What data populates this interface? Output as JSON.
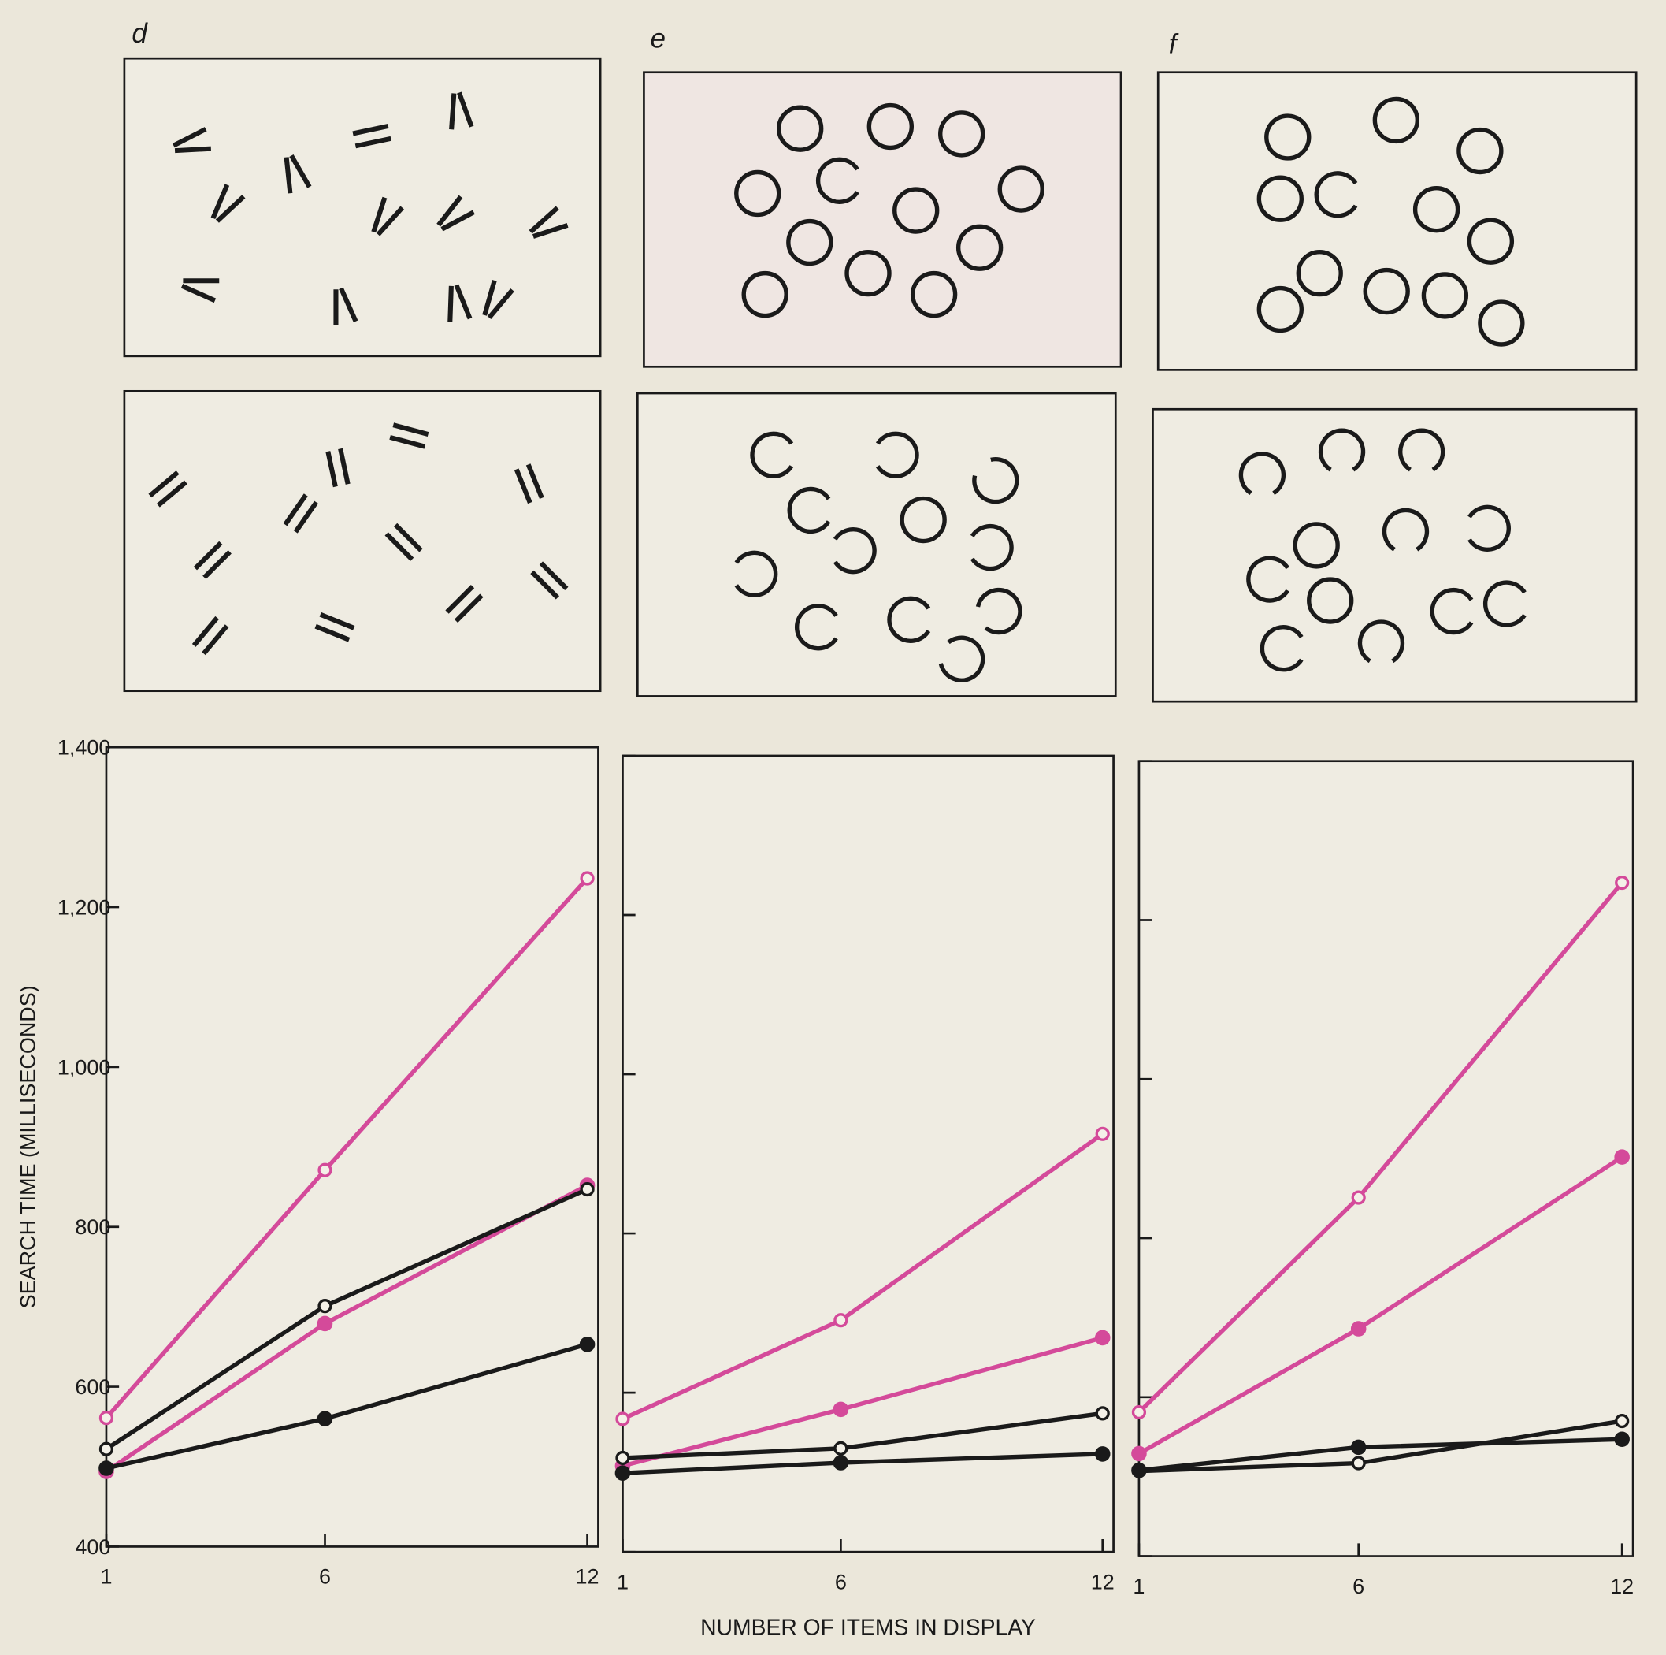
{
  "chart_data": [
    {
      "type": "line",
      "title": "d",
      "y_label": "SEARCH TIME (MILLISECONDS)",
      "x": [
        1,
        6,
        12
      ],
      "xlim": [
        1,
        12.25
      ],
      "xticks": [
        1,
        6,
        12
      ],
      "ylim": [
        400,
        1400
      ],
      "yticks": [
        400,
        600,
        800,
        {
          "value": 1000,
          "label": "1,000"
        },
        {
          "value": 1200,
          "label": "1,200"
        },
        {
          "value": 1400,
          "label": "1,400"
        }
      ],
      "series": [
        {
          "color": "#d44a9a",
          "marker": "open",
          "values": [
            561,
            871,
            1236
          ]
        },
        {
          "color": "#d44a9a",
          "marker": "filled",
          "values": [
            494,
            679,
            852
          ]
        },
        {
          "color": "#1a1a1a",
          "marker": "open",
          "values": [
            522,
            701,
            847
          ]
        },
        {
          "color": "#1a1a1a",
          "marker": "filled",
          "values": [
            498,
            560,
            653
          ]
        }
      ]
    },
    {
      "type": "line",
      "title": "e",
      "x_label": "NUMBER OF ITEMS IN DISPLAY",
      "x": [
        1,
        6,
        12
      ],
      "xlim": [
        1,
        12.25
      ],
      "xticks": [
        1,
        6,
        12
      ],
      "ylim": [
        400,
        1400
      ],
      "series": [
        {
          "color": "#d44a9a",
          "marker": "open",
          "values": [
            567,
            691,
            925
          ]
        },
        {
          "color": "#d44a9a",
          "marker": "filled",
          "values": [
            508,
            579,
            669
          ]
        },
        {
          "color": "#1a1a1a",
          "marker": "open",
          "values": [
            518,
            530,
            574
          ]
        },
        {
          "color": "#1a1a1a",
          "marker": "filled",
          "values": [
            499,
            512,
            523
          ]
        }
      ]
    },
    {
      "type": "line",
      "title": "f",
      "x": [
        1,
        6,
        12
      ],
      "xlim": [
        1,
        12.25
      ],
      "xticks": [
        1,
        6,
        12
      ],
      "ylim": [
        400,
        1400
      ],
      "series": [
        {
          "color": "#d44a9a",
          "marker": "open",
          "values": [
            581,
            851,
            1247
          ]
        },
        {
          "color": "#d44a9a",
          "marker": "filled",
          "values": [
            529,
            686,
            902
          ]
        },
        {
          "color": "#1a1a1a",
          "marker": "open",
          "values": [
            507,
            517,
            570
          ]
        },
        {
          "color": "#1a1a1a",
          "marker": "filled",
          "values": [
            508,
            537,
            547
          ]
        }
      ]
    }
  ]
}
